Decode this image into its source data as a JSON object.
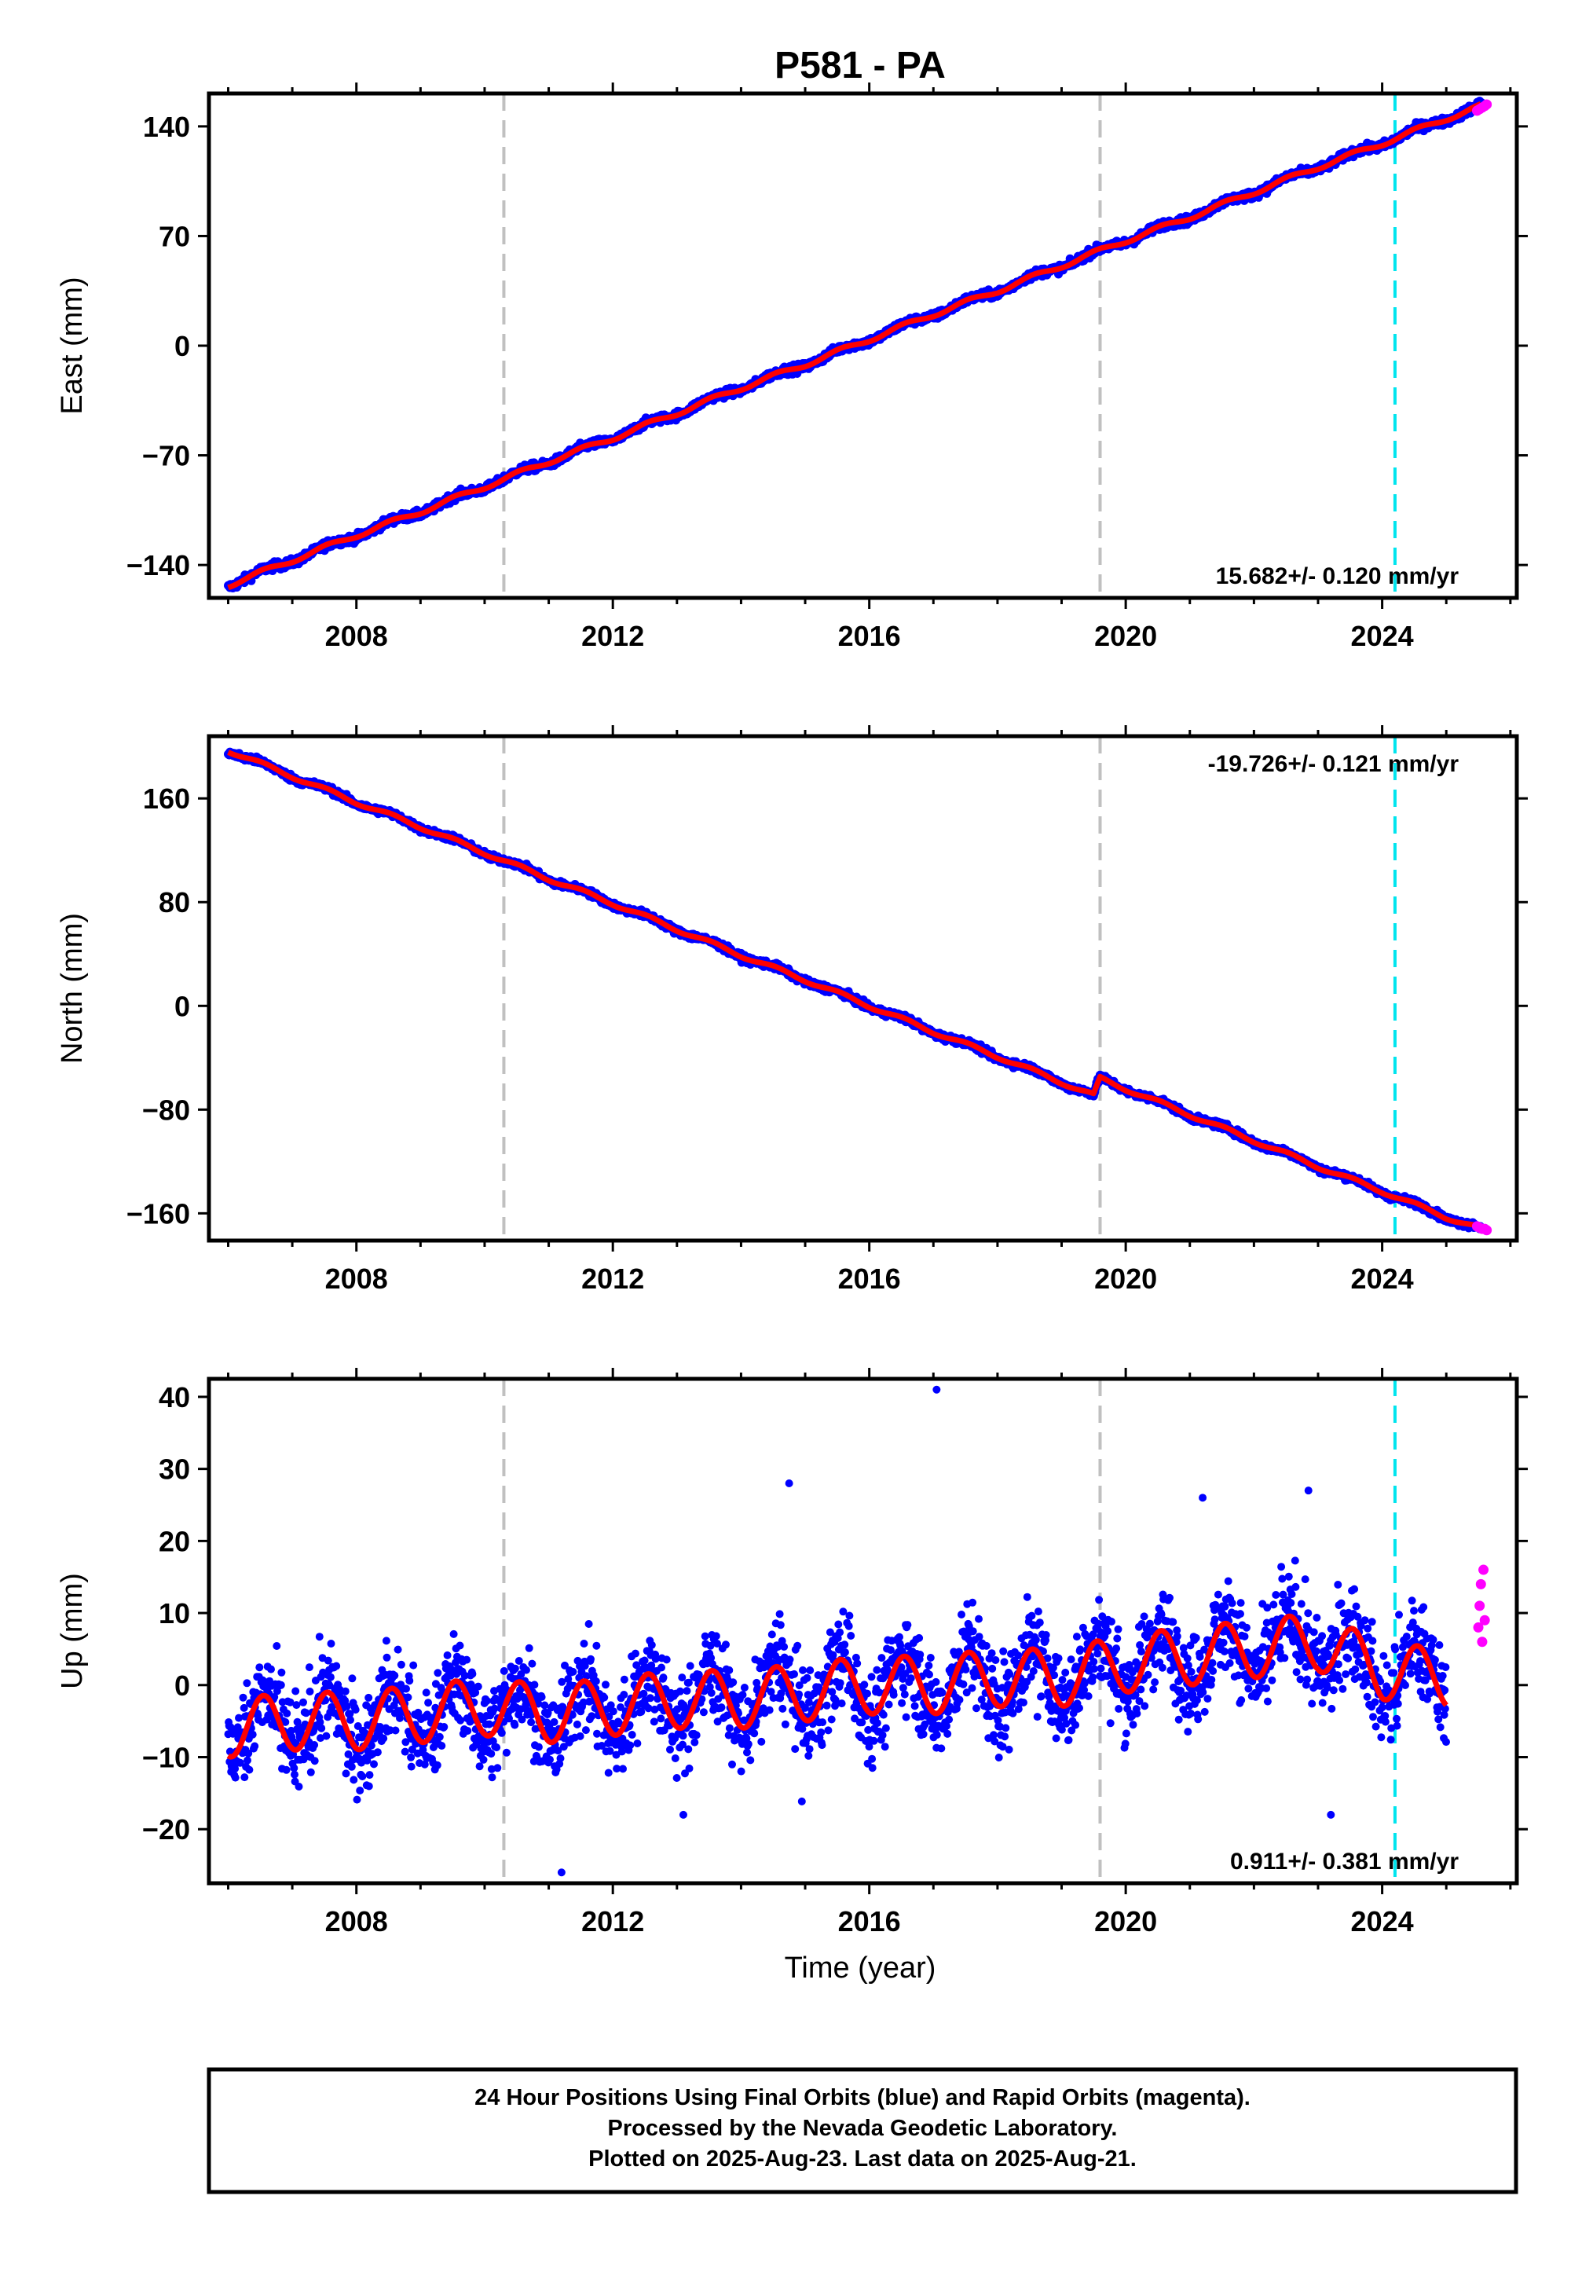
{
  "title": "P581 - PA",
  "xlabel": "Time (year)",
  "caption": {
    "line1": "24 Hour Positions Using Final Orbits (blue) and Rapid Orbits (magenta).",
    "line2": "Processed by the Nevada Geodetic Laboratory.",
    "line3": "Plotted on 2025-Aug-23. Last data on 2025-Aug-21."
  },
  "colors": {
    "final_orbits": "#0000ff",
    "rapid_orbits": "#ff00ff",
    "model_fit": "#ff0000",
    "equipment_change": "#c0c0c0",
    "earthquake": "#00e5ee"
  },
  "chart_data": [
    {
      "type": "scatter",
      "panel": "east",
      "ylabel": "East (mm)",
      "xlim": [
        2005.7,
        2026.1
      ],
      "ylim": [
        -161,
        161
      ],
      "yticks": [
        -140,
        -70,
        0,
        70,
        140
      ],
      "xticks": [
        2008,
        2012,
        2016,
        2020,
        2024
      ],
      "rate_label": "15.682+/- 0.120 mm/yr",
      "rate_position": "bottom-right",
      "series": [
        {
          "name": "Final Orbits (blue)",
          "x": [
            2006.0,
            2007.0,
            2008.0,
            2009.0,
            2010.0,
            2011.0,
            2012.0,
            2013.0,
            2014.0,
            2015.0,
            2016.0,
            2017.0,
            2018.0,
            2019.0,
            2020.0,
            2021.0,
            2022.0,
            2023.0,
            2024.0,
            2025.0,
            2025.55
          ],
          "y": [
            -153,
            -137,
            -121,
            -106,
            -90,
            -74,
            -59,
            -43,
            -27,
            -12,
            4,
            20,
            35,
            51,
            67,
            82,
            98,
            114,
            129,
            145,
            153
          ]
        },
        {
          "name": "Rapid Orbits (magenta)",
          "x": [
            2025.48,
            2025.52,
            2025.56,
            2025.6,
            2025.63
          ],
          "y": [
            150,
            151,
            152,
            153,
            154
          ]
        }
      ],
      "vlines_gray": [
        2010.3,
        2019.6
      ],
      "vlines_cyan": [
        2024.2
      ]
    },
    {
      "type": "scatter",
      "panel": "north",
      "ylabel": "North (mm)",
      "xlim": [
        2005.7,
        2026.1
      ],
      "ylim": [
        -181,
        208
      ],
      "yticks": [
        -160,
        -80,
        0,
        80,
        160
      ],
      "xticks": [
        2008,
        2012,
        2016,
        2020,
        2024
      ],
      "rate_label": "-19.726+/- 0.121 mm/yr",
      "rate_position": "top-right",
      "series": [
        {
          "name": "Final Orbits (blue)",
          "x": [
            2006.0,
            2007.0,
            2008.0,
            2009.0,
            2010.0,
            2011.0,
            2012.0,
            2013.0,
            2014.0,
            2015.0,
            2016.0,
            2017.0,
            2018.0,
            2019.0,
            2019.5,
            2019.6,
            2020.0,
            2021.0,
            2022.0,
            2023.0,
            2024.0,
            2025.0,
            2025.55
          ],
          "y": [
            197,
            177,
            157,
            138,
            118,
            98,
            79,
            59,
            39,
            20,
            0,
            -20,
            -39,
            -59,
            -69,
            -56,
            -64,
            -84,
            -104,
            -124,
            -143,
            -163,
            -172
          ]
        },
        {
          "name": "Rapid Orbits (magenta)",
          "x": [
            2025.48,
            2025.52,
            2025.56,
            2025.6,
            2025.63
          ],
          "y": [
            -170,
            -171,
            -172,
            -172,
            -173
          ]
        }
      ],
      "vlines_gray": [
        2010.3,
        2019.6
      ],
      "vlines_cyan": [
        2024.2
      ]
    },
    {
      "type": "scatter",
      "panel": "up",
      "ylabel": "Up (mm)",
      "xlim": [
        2005.7,
        2026.1
      ],
      "ylim": [
        -27.5,
        42.5
      ],
      "yticks": [
        -20,
        -10,
        0,
        10,
        20,
        30,
        40
      ],
      "xticks": [
        2008,
        2012,
        2016,
        2020,
        2024
      ],
      "rate_label": "0.911+/- 0.381 mm/yr",
      "rate_position": "bottom-right",
      "series": [
        {
          "name": "Final Orbits (blue)",
          "x": [
            2006.0,
            2007.0,
            2008.0,
            2009.0,
            2010.0,
            2011.0,
            2012.0,
            2013.0,
            2014.0,
            2015.0,
            2016.0,
            2017.0,
            2018.0,
            2019.0,
            2020.0,
            2021.0,
            2022.0,
            2023.0,
            2024.0,
            2025.0
          ],
          "y": [
            -6,
            -5,
            -5,
            -4,
            -3,
            -4,
            -3,
            -2,
            -2,
            -1,
            0,
            0,
            1,
            1,
            3,
            4,
            5,
            6,
            2,
            1
          ]
        },
        {
          "name": "Rapid Orbits (magenta)",
          "x": [
            2025.5,
            2025.52,
            2025.54,
            2025.56,
            2025.58,
            2025.6
          ],
          "y": [
            8,
            11,
            14,
            6,
            16,
            9
          ]
        }
      ],
      "seasonal_amplitude_mm": 4,
      "outliers": [
        [
          2017.05,
          41
        ],
        [
          2014.75,
          28
        ],
        [
          2022.85,
          27
        ],
        [
          2011.2,
          -26
        ],
        [
          2023.2,
          -18
        ],
        [
          2013.1,
          -18
        ],
        [
          2021.2,
          26
        ]
      ],
      "vlines_gray": [
        2010.3,
        2019.6
      ],
      "vlines_cyan": [
        2024.2
      ]
    }
  ]
}
